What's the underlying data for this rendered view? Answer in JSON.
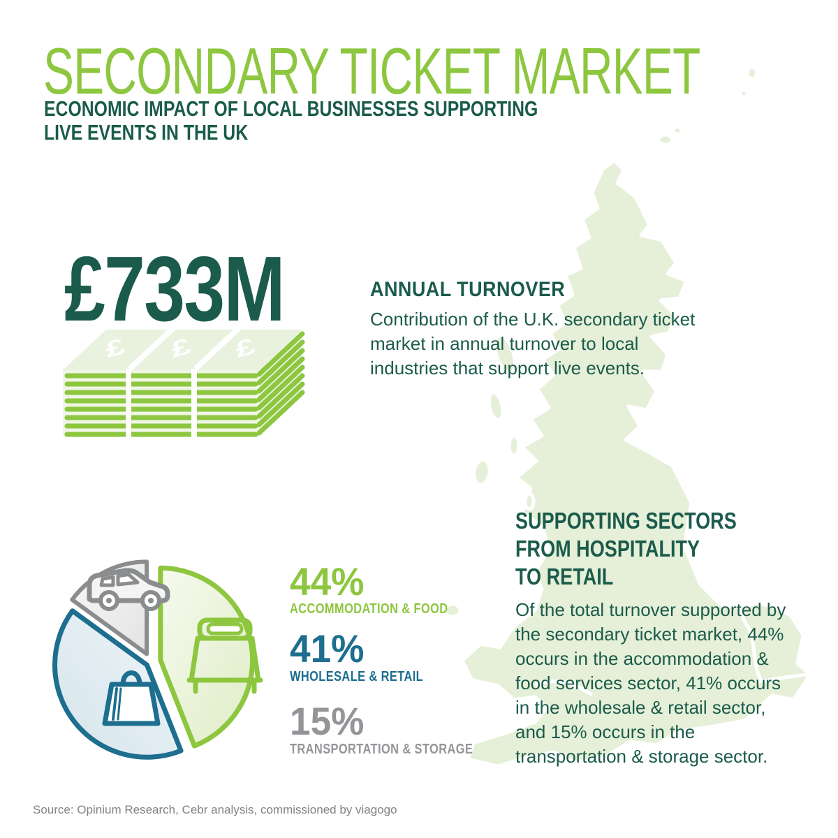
{
  "header": {
    "title": "SECONDARY TICKET MARKET",
    "subtitle_line1": "ECONOMIC IMPACT OF LOCAL BUSINESSES SUPPORTING",
    "subtitle_line2": "LIVE EVENTS IN THE UK"
  },
  "turnover": {
    "amount": "£733M",
    "heading": "ANNUAL TURNOVER",
    "body": "Contribution of the U.K. secondary ticket market in annual turnover to local industries that support live events."
  },
  "money": {
    "mark": "£"
  },
  "sectors": {
    "heading_line1": "SUPPORTING SECTORS",
    "heading_line2": "FROM HOSPITALITY",
    "heading_line3": "TO RETAIL",
    "body": "Of the total turnover supported by the secondary ticket market, 44% occurs in the accommodation & food services sector, 41% occurs in the wholesale & retail sector, and 15% occurs in the transportation & storage sector."
  },
  "legend": [
    {
      "value": "44%",
      "label": "ACCOMMODATION & FOOD",
      "color": "#8DC63F"
    },
    {
      "value": "41%",
      "label": "WHOLESALE & RETAIL",
      "color": "#1D6E8F"
    },
    {
      "value": "15%",
      "label": "TRANSPORTATION & STORAGE",
      "color": "#939598"
    }
  ],
  "chart_data": {
    "type": "pie",
    "title": "Supporting sectors share of turnover supported by the secondary ticket market",
    "categories": [
      "Accommodation & Food",
      "Wholesale & Retail",
      "Transportation & Storage"
    ],
    "values": [
      44,
      41,
      15
    ],
    "unit": "%",
    "colors": [
      "#8DC63F",
      "#1D6E8F",
      "#8A8C8E"
    ],
    "start_angle_deg": -90,
    "direction": "clockwise",
    "legend_position": "right",
    "exploded": true,
    "slice_icons": [
      "bed-icon",
      "shopping-bag-icon",
      "car-icon"
    ]
  },
  "footer": {
    "source": "Source: Opinium Research, Cebr analysis, commissioned by viagogo"
  },
  "colors": {
    "accent_green": "#8DC63F",
    "dark_green": "#1B5B4B",
    "teal_blue": "#1D6E8F",
    "gray_text": "#939598",
    "footer_gray": "#808285",
    "map_green": "#E6F0D8",
    "money_face": "#E9F2DE"
  }
}
